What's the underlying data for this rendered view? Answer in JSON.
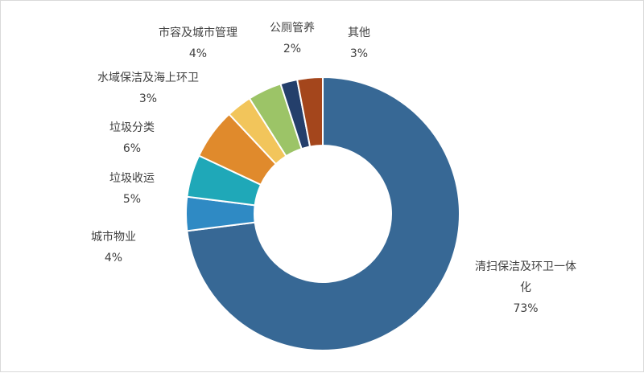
{
  "chart_data": {
    "type": "pie",
    "variant": "donut",
    "title": "",
    "legend": "none",
    "slices": [
      {
        "label": "清扫保洁及环卫一体化",
        "label_lines": [
          "清扫保洁及环卫一体",
          "化"
        ],
        "value": 73,
        "display": "73%",
        "color": "#376895"
      },
      {
        "label": "城市物业",
        "label_lines": [
          "城市物业"
        ],
        "value": 4,
        "display": "4%",
        "color": "#2f8ac4"
      },
      {
        "label": "垃圾收运",
        "label_lines": [
          "垃圾收运"
        ],
        "value": 5,
        "display": "5%",
        "color": "#1fa8b8"
      },
      {
        "label": "垃圾分类",
        "label_lines": [
          "垃圾分类"
        ],
        "value": 6,
        "display": "6%",
        "color": "#e08a2c"
      },
      {
        "label": "水域保洁及海上环卫",
        "label_lines": [
          "水域保洁及海上环卫"
        ],
        "value": 3,
        "display": "3%",
        "color": "#f2c55b"
      },
      {
        "label": "市容及城市管理",
        "label_lines": [
          "市容及城市管理"
        ],
        "value": 4,
        "display": "4%",
        "color": "#9cc467"
      },
      {
        "label": "公厕管养",
        "label_lines": [
          "公厕管养"
        ],
        "value": 2,
        "display": "2%",
        "color": "#243f6b"
      },
      {
        "label": "其他",
        "label_lines": [
          "其他"
        ],
        "value": 3,
        "display": "3%",
        "color": "#a4461c"
      }
    ]
  }
}
